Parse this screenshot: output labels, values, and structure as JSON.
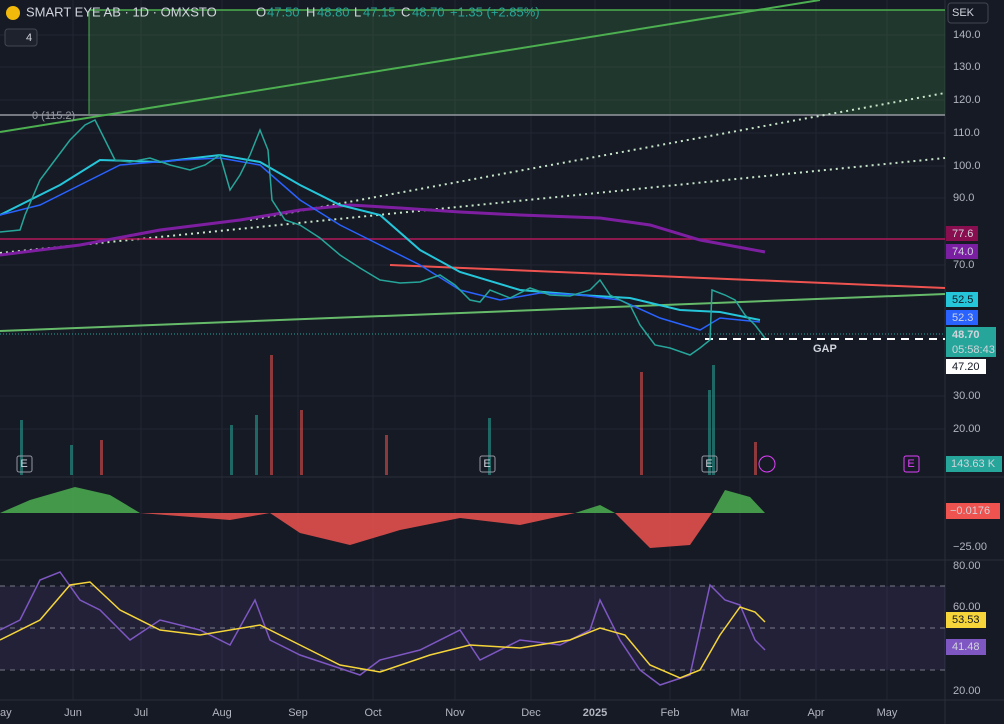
{
  "header": {
    "symbol": "SMART EYE AB · 1D · OMXSTO",
    "open_label": "O",
    "open": "47.50",
    "high_label": "H",
    "high": "48.80",
    "low_label": "L",
    "low": "47.15",
    "close_label": "C",
    "close": "48.70",
    "change": "+1.35 (+2.85%)",
    "indicator_count": "4",
    "currency": "SEK"
  },
  "annotations": {
    "fib_level": "0 (115.2)",
    "gap": "GAP",
    "event": "E"
  },
  "price_axis": [
    "140.0",
    "130.0",
    "120.0",
    "110.0",
    "100.0",
    "90.0",
    "70.0"
  ],
  "volume_axis": [
    "30.00",
    "20.00"
  ],
  "price_badges": {
    "ma_long_a": "77.6",
    "ma_long_b": "74.0",
    "ma_mid": "52.5",
    "ma_fast": "52.3",
    "last_price": "48.70",
    "countdown": "05:58:43",
    "prev": "47.20"
  },
  "volume_badge": "143.63 K",
  "macd": {
    "value": "−0.0176",
    "tick": "−25.00"
  },
  "rsi": {
    "ticks": [
      "80.00",
      "60.00",
      "20.00"
    ],
    "ma": "53.53",
    "value": "41.48"
  },
  "time_axis": [
    "ay",
    "Jun",
    "Jul",
    "Aug",
    "Sep",
    "Oct",
    "Nov",
    "Dec",
    "2025",
    "Feb",
    "Mar",
    "Apr",
    "May"
  ]
}
